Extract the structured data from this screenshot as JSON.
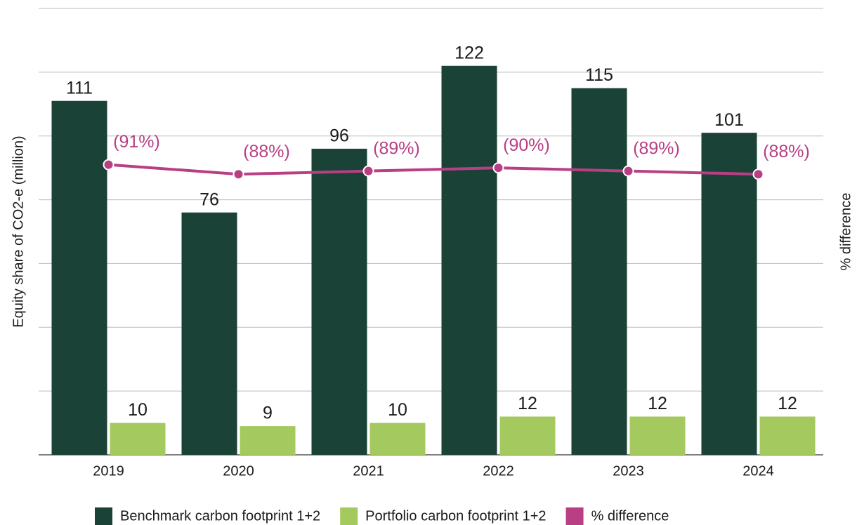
{
  "chart_data": {
    "type": "bar",
    "categories": [
      "2019",
      "2020",
      "2021",
      "2022",
      "2023",
      "2024"
    ],
    "ylabel": "Equity share of CO2-e (million)",
    "y2label": "% difference",
    "ylim": [
      0,
      140
    ],
    "yticks": [
      0,
      20,
      40,
      60,
      80,
      100,
      120,
      140
    ],
    "y2lim": [
      0,
      140
    ],
    "grid": true,
    "legend": "bottom",
    "series": [
      {
        "name": "Benchmark carbon footprint 1+2",
        "type": "bar",
        "color": "#1b4237",
        "values": [
          111,
          76,
          96,
          122,
          115,
          101
        ]
      },
      {
        "name": "Portfolio carbon footprint 1+2",
        "type": "bar",
        "color": "#a4c95e",
        "values": [
          10,
          9,
          10,
          12,
          12,
          12
        ]
      },
      {
        "name": "% difference",
        "type": "line",
        "axis": "y2",
        "color": "#b83f84",
        "values": [
          91,
          88,
          89,
          90,
          89,
          88
        ],
        "value_labels": [
          "(91%)",
          "(88%)",
          "(89%)",
          "(90%)",
          "(89%)",
          "(88%)"
        ]
      }
    ]
  }
}
